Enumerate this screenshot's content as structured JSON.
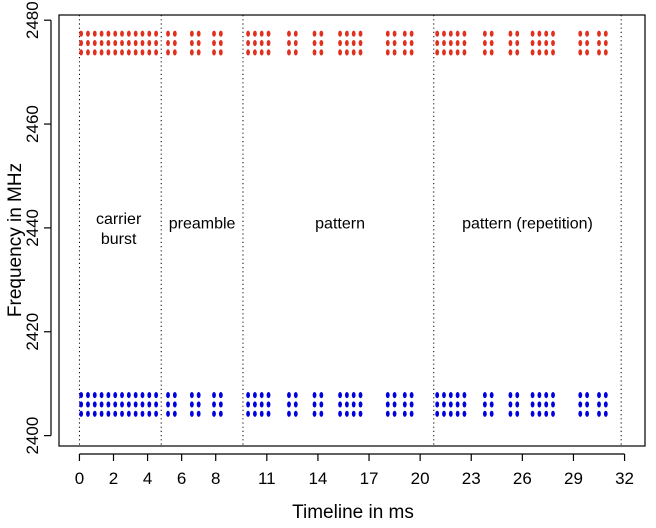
{
  "chart_data": {
    "type": "scatter",
    "title": "",
    "xlabel": "Timeline in ms",
    "ylabel": "Frequency in MHz",
    "xlim": [
      -1.2,
      33.2
    ],
    "ylim": [
      2398,
      2481
    ],
    "xticks": [
      0,
      2,
      4,
      6,
      8,
      11,
      14,
      17,
      20,
      23,
      26,
      29,
      32
    ],
    "yticks": [
      2400,
      2420,
      2440,
      2460,
      2480
    ],
    "grid": false,
    "legend": "none",
    "colors": {
      "high": "#e0301e",
      "low": "#0000dd"
    },
    "phase_boundaries_ms": [
      0,
      4.8,
      9.6,
      20.8,
      31.8
    ],
    "annotations": [
      {
        "lines": [
          "carrier",
          "burst"
        ],
        "x_ms": 2.3,
        "y_mhz": 2440
      },
      {
        "lines": [
          "preamble"
        ],
        "x_ms": 7.2,
        "y_mhz": 2441
      },
      {
        "lines": [
          "pattern"
        ],
        "x_ms": 15.3,
        "y_mhz": 2441
      },
      {
        "lines": [
          "pattern (repetition)"
        ],
        "x_ms": 26.3,
        "y_mhz": 2441
      }
    ],
    "series": [
      {
        "color": "#e0301e",
        "pulse_times_ms": [
          0.1,
          0.5,
          0.9,
          1.3,
          1.7,
          2.1,
          2.5,
          2.9,
          3.3,
          3.7,
          4.1,
          4.5,
          5.2,
          5.6,
          6.6,
          7.0,
          7.9,
          8.3,
          9.9,
          10.3,
          10.7,
          11.1,
          12.3,
          12.7,
          13.8,
          14.2,
          15.3,
          15.7,
          16.1,
          16.5,
          18.1,
          18.5,
          19.1,
          19.5,
          21.0,
          21.4,
          21.8,
          22.2,
          22.6,
          23.8,
          24.2,
          25.3,
          25.7,
          26.6,
          27.0,
          27.4,
          27.8,
          29.4,
          29.8,
          30.5,
          30.9
        ],
        "frequencies_mhz": [
          2473.8,
          2475.6,
          2477.4
        ]
      },
      {
        "color": "#0000dd",
        "pulse_times_ms": [
          0.1,
          0.5,
          0.9,
          1.3,
          1.7,
          2.1,
          2.5,
          2.9,
          3.3,
          3.7,
          4.1,
          4.5,
          5.2,
          5.6,
          6.6,
          7.0,
          7.9,
          8.3,
          9.9,
          10.3,
          10.7,
          11.1,
          12.3,
          12.7,
          13.8,
          14.2,
          15.3,
          15.7,
          16.1,
          16.5,
          18.1,
          18.5,
          19.1,
          19.5,
          21.0,
          21.4,
          21.8,
          22.2,
          22.6,
          23.8,
          24.2,
          25.3,
          25.7,
          26.6,
          27.0,
          27.4,
          27.8,
          29.4,
          29.8,
          30.5,
          30.9
        ],
        "frequencies_mhz": [
          2404.2,
          2406.0,
          2407.8
        ]
      }
    ]
  }
}
